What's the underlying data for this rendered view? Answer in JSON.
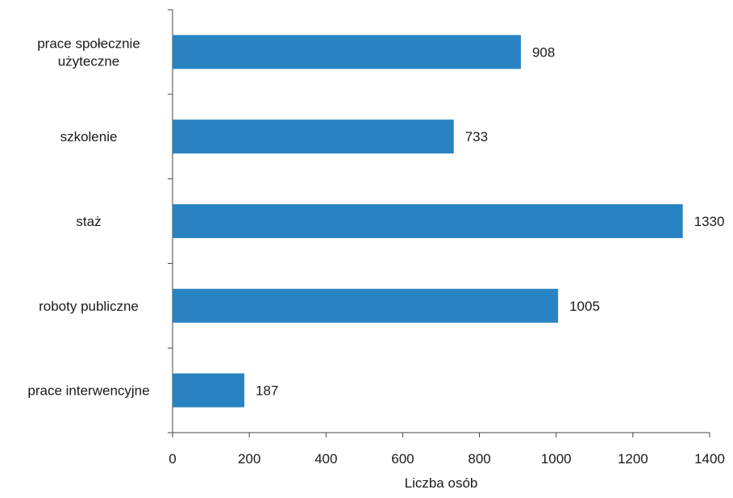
{
  "chart_data": {
    "type": "bar",
    "orientation": "horizontal",
    "categories": [
      [
        "prace społecznie",
        "użyteczne"
      ],
      [
        "szkolenie"
      ],
      [
        "staż"
      ],
      [
        "roboty publiczne"
      ],
      [
        "prace interwencyjne"
      ]
    ],
    "values": [
      908,
      733,
      1330,
      1005,
      187
    ],
    "data_labels": [
      "908",
      "733",
      "1330",
      "1005",
      "187"
    ],
    "xlabel": "Liczba osób",
    "ylabel": "",
    "xlim": [
      0,
      1400
    ],
    "xticks": [
      0,
      200,
      400,
      600,
      800,
      1000,
      1200,
      1400
    ],
    "xtick_labels": [
      "0",
      "200",
      "400",
      "600",
      "800",
      "1000",
      "1200",
      "1400"
    ],
    "bar_color": "#2983c3",
    "grid": false,
    "legend": "none"
  }
}
